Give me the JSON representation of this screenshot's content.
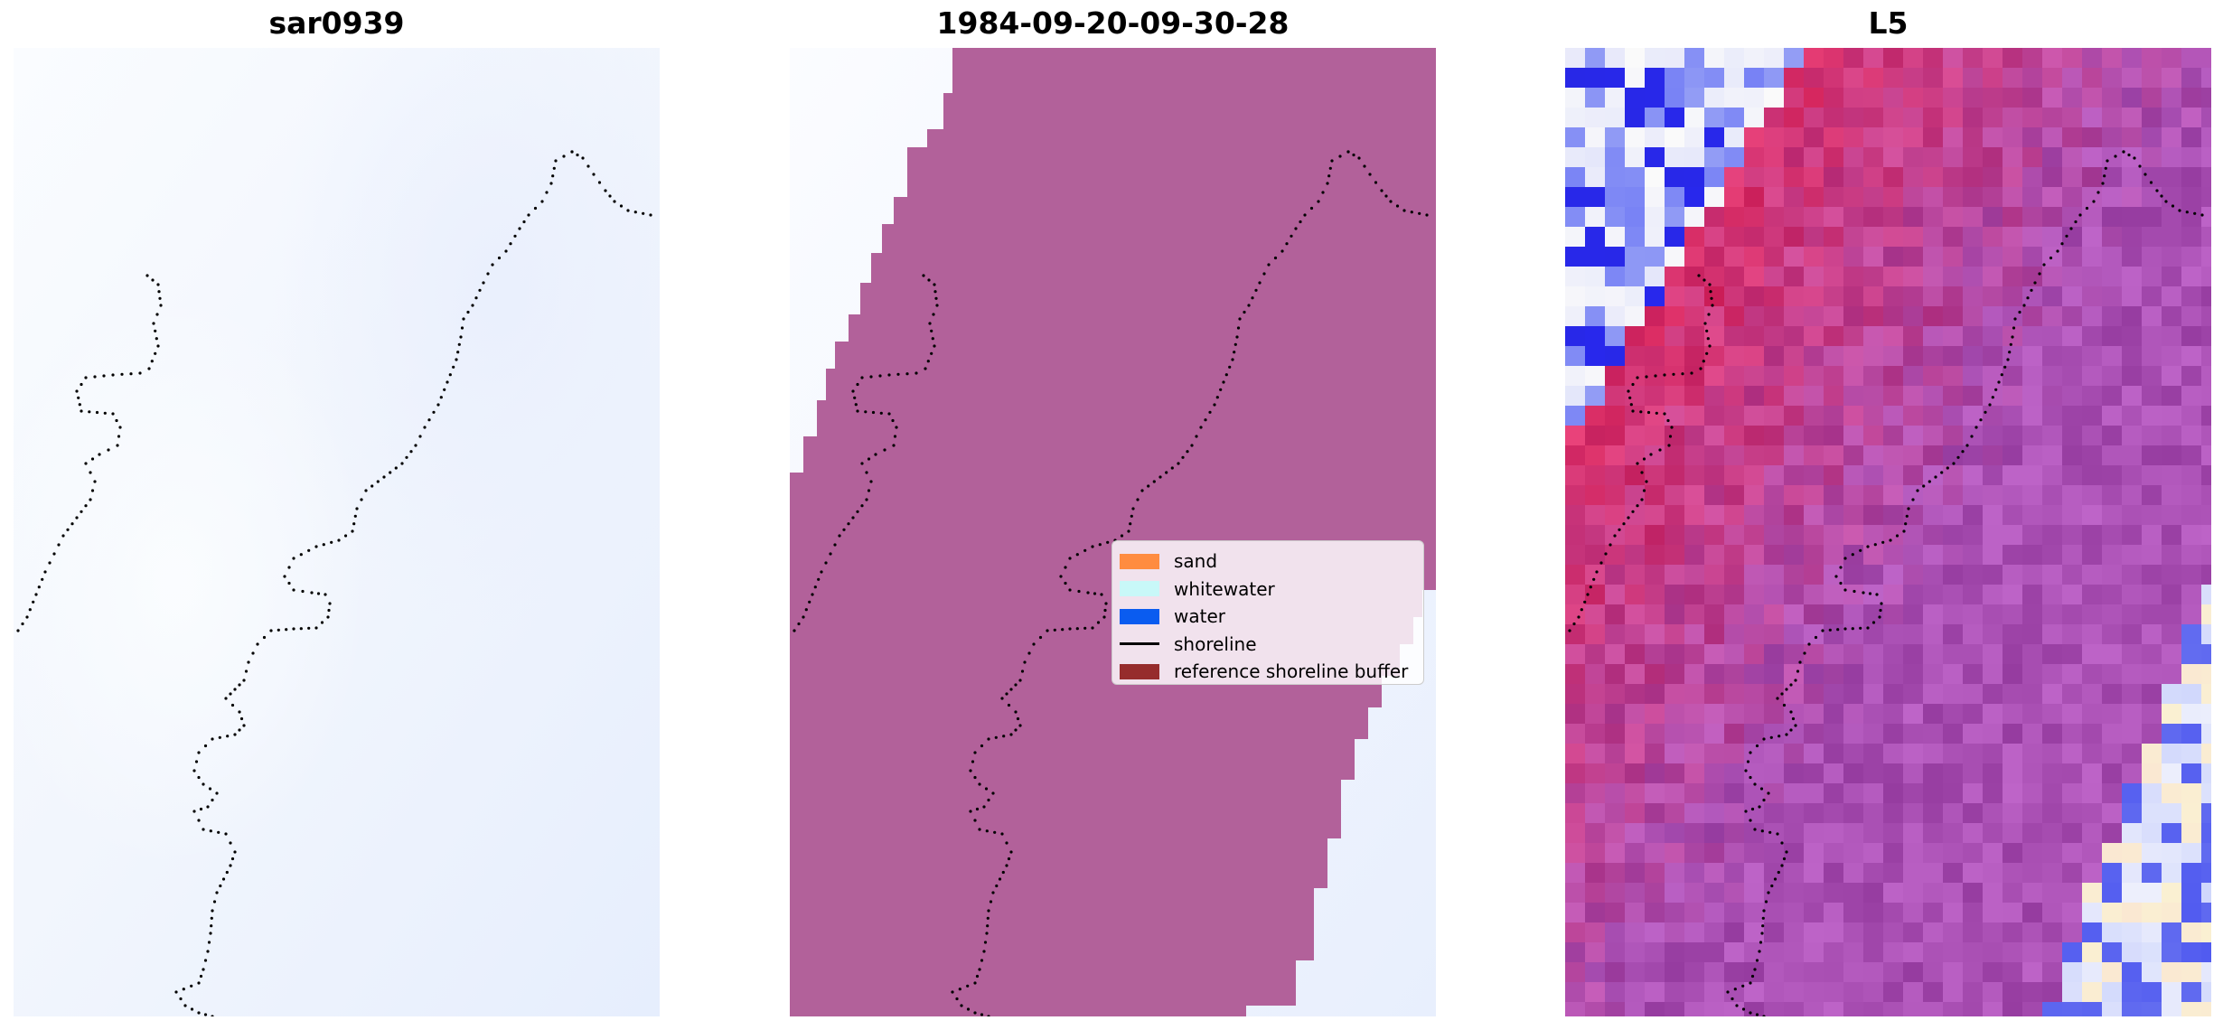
{
  "panels": [
    {
      "title": "sar0939"
    },
    {
      "title": "1984-09-20-09-30-28"
    },
    {
      "title": "L5"
    }
  ],
  "legend": {
    "items": [
      {
        "label": "sand",
        "color": "#ff8c40",
        "kind": "patch"
      },
      {
        "label": "whitewater",
        "color": "#c8f8f8",
        "kind": "patch"
      },
      {
        "label": "water",
        "color": "#0a5cf0",
        "kind": "patch"
      },
      {
        "label": "shoreline",
        "color": "#000000",
        "kind": "line"
      },
      {
        "label": "reference shoreline buffer",
        "color": "#962c2c",
        "kind": "patch"
      }
    ]
  },
  "colors": {
    "classified_buffer": "#b2619a",
    "sar_background": "#f2f6fd",
    "shoreline_points": "#000000"
  }
}
